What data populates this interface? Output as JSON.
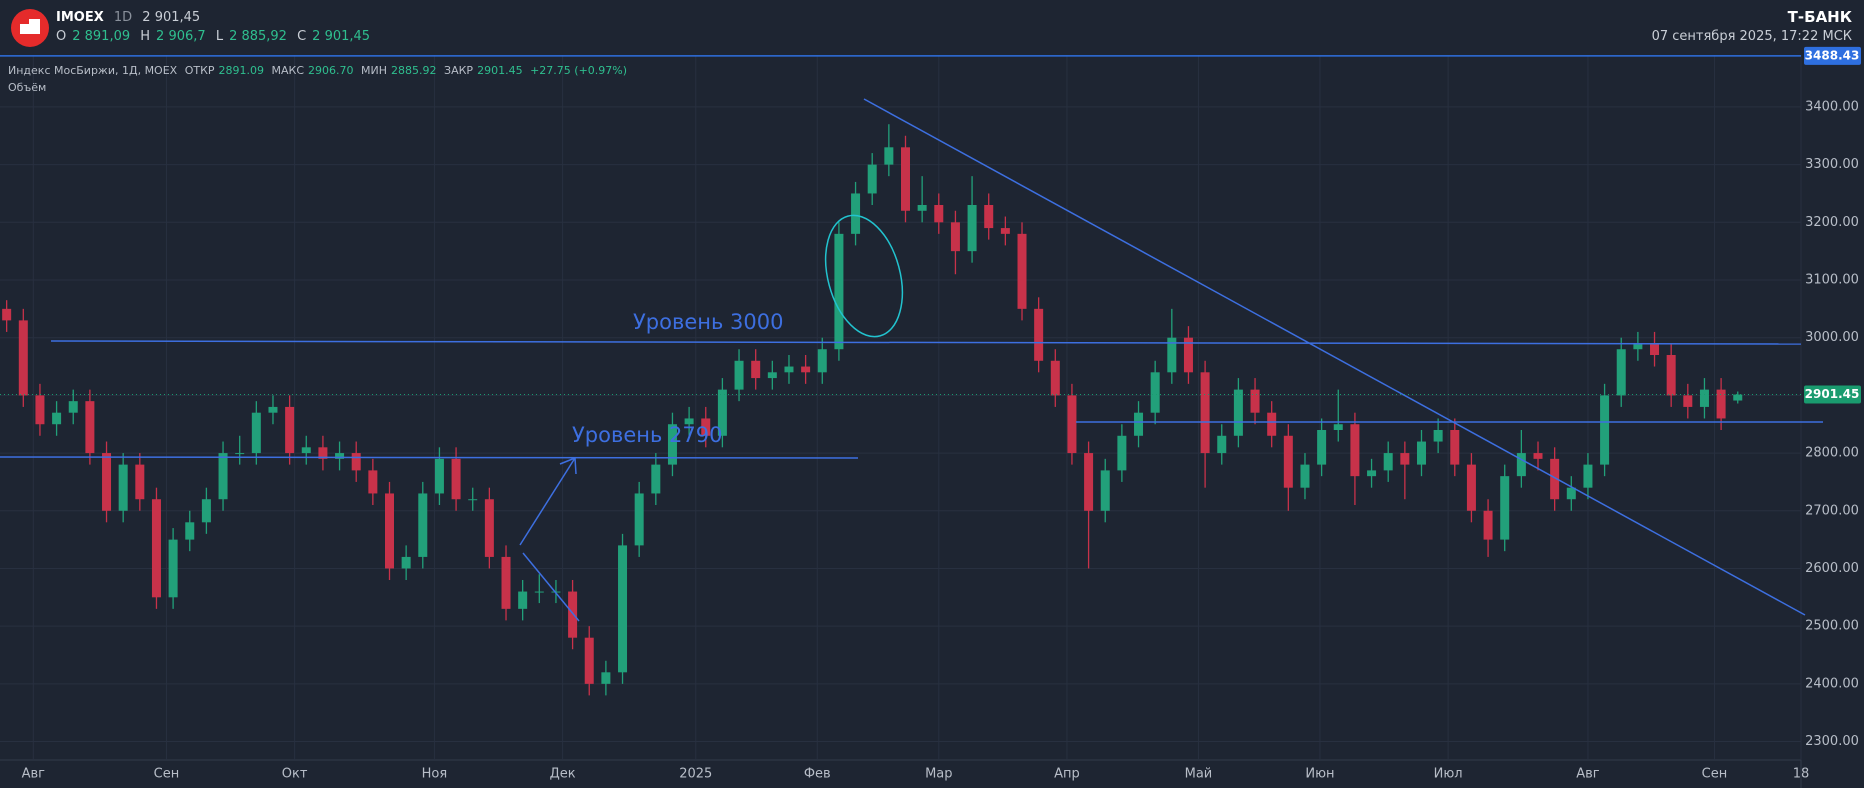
{
  "header": {
    "symbol": "IMOEX",
    "interval": "1D",
    "price": "2 901,45",
    "o_label": "O",
    "o": "2 891,09",
    "h_label": "H",
    "h": "2 906,7",
    "l_label": "L",
    "l": "2 885,92",
    "c_label": "C",
    "c": "2 901,45",
    "brand": "Т-БАНК",
    "datetime": "07 сентября 2025, 17:22 МСК"
  },
  "legend": {
    "name": "Индекс МосБиржи, 1Д, MOEX",
    "open_label": "ОТКР",
    "open": "2891.09",
    "high_label": "МАКС",
    "high": "2906.70",
    "low_label": "МИН",
    "low": "2885.92",
    "close_label": "ЗАКР",
    "close": "2901.45",
    "change": "+27.75 (+0.97%)",
    "volume": "Объём"
  },
  "chart_data": {
    "type": "candlestick",
    "ohlc": [
      [
        3050,
        3065,
        3010,
        3030
      ],
      [
        3030,
        3050,
        2880,
        2900
      ],
      [
        2900,
        2920,
        2830,
        2850
      ],
      [
        2850,
        2890,
        2830,
        2870
      ],
      [
        2870,
        2910,
        2850,
        2890
      ],
      [
        2890,
        2910,
        2780,
        2800
      ],
      [
        2800,
        2820,
        2680,
        2700
      ],
      [
        2700,
        2800,
        2680,
        2780
      ],
      [
        2780,
        2800,
        2700,
        2720
      ],
      [
        2720,
        2740,
        2530,
        2550
      ],
      [
        2550,
        2670,
        2530,
        2650
      ],
      [
        2650,
        2700,
        2630,
        2680
      ],
      [
        2680,
        2740,
        2660,
        2720
      ],
      [
        2720,
        2820,
        2700,
        2800
      ],
      [
        2800,
        2830,
        2780,
        2800
      ],
      [
        2800,
        2890,
        2780,
        2870
      ],
      [
        2870,
        2900,
        2850,
        2880
      ],
      [
        2880,
        2900,
        2780,
        2800
      ],
      [
        2800,
        2830,
        2780,
        2810
      ],
      [
        2810,
        2830,
        2770,
        2790
      ],
      [
        2790,
        2820,
        2770,
        2800
      ],
      [
        2800,
        2820,
        2750,
        2770
      ],
      [
        2770,
        2790,
        2710,
        2730
      ],
      [
        2730,
        2750,
        2580,
        2600
      ],
      [
        2600,
        2640,
        2580,
        2620
      ],
      [
        2620,
        2750,
        2600,
        2730
      ],
      [
        2730,
        2810,
        2710,
        2790
      ],
      [
        2790,
        2810,
        2700,
        2720
      ],
      [
        2720,
        2740,
        2700,
        2720
      ],
      [
        2720,
        2740,
        2600,
        2620
      ],
      [
        2620,
        2640,
        2510,
        2530
      ],
      [
        2530,
        2580,
        2510,
        2560
      ],
      [
        2560,
        2590,
        2540,
        2560
      ],
      [
        2560,
        2580,
        2540,
        2560
      ],
      [
        2560,
        2580,
        2460,
        2480
      ],
      [
        2480,
        2500,
        2380,
        2400
      ],
      [
        2400,
        2440,
        2380,
        2420
      ],
      [
        2420,
        2660,
        2400,
        2640
      ],
      [
        2640,
        2750,
        2620,
        2730
      ],
      [
        2730,
        2800,
        2710,
        2780
      ],
      [
        2780,
        2870,
        2760,
        2850
      ],
      [
        2850,
        2880,
        2830,
        2860
      ],
      [
        2860,
        2880,
        2810,
        2830
      ],
      [
        2830,
        2930,
        2810,
        2910
      ],
      [
        2910,
        2980,
        2890,
        2960
      ],
      [
        2960,
        2980,
        2910,
        2930
      ],
      [
        2930,
        2960,
        2910,
        2940
      ],
      [
        2940,
        2970,
        2920,
        2950
      ],
      [
        2950,
        2970,
        2920,
        2940
      ],
      [
        2940,
        3000,
        2920,
        2980
      ],
      [
        2980,
        3200,
        2960,
        3180
      ],
      [
        3180,
        3270,
        3160,
        3250
      ],
      [
        3250,
        3320,
        3230,
        3300
      ],
      [
        3300,
        3370,
        3280,
        3330
      ],
      [
        3330,
        3350,
        3200,
        3220
      ],
      [
        3220,
        3280,
        3200,
        3230
      ],
      [
        3230,
        3250,
        3180,
        3200
      ],
      [
        3200,
        3220,
        3110,
        3150
      ],
      [
        3150,
        3280,
        3130,
        3230
      ],
      [
        3230,
        3250,
        3170,
        3190
      ],
      [
        3190,
        3210,
        3160,
        3180
      ],
      [
        3180,
        3200,
        3030,
        3050
      ],
      [
        3050,
        3070,
        2940,
        2960
      ],
      [
        2960,
        2980,
        2880,
        2900
      ],
      [
        2900,
        2920,
        2780,
        2800
      ],
      [
        2800,
        2820,
        2600,
        2700
      ],
      [
        2700,
        2790,
        2680,
        2770
      ],
      [
        2770,
        2850,
        2750,
        2830
      ],
      [
        2830,
        2890,
        2810,
        2870
      ],
      [
        2870,
        2960,
        2850,
        2940
      ],
      [
        2940,
        3050,
        2920,
        3000
      ],
      [
        3000,
        3020,
        2920,
        2940
      ],
      [
        2940,
        2960,
        2740,
        2800
      ],
      [
        2800,
        2850,
        2780,
        2830
      ],
      [
        2830,
        2930,
        2810,
        2910
      ],
      [
        2910,
        2930,
        2850,
        2870
      ],
      [
        2870,
        2890,
        2810,
        2830
      ],
      [
        2830,
        2850,
        2700,
        2740
      ],
      [
        2740,
        2800,
        2720,
        2780
      ],
      [
        2780,
        2860,
        2760,
        2840
      ],
      [
        2840,
        2910,
        2820,
        2850
      ],
      [
        2850,
        2870,
        2710,
        2760
      ],
      [
        2760,
        2790,
        2740,
        2770
      ],
      [
        2770,
        2820,
        2750,
        2800
      ],
      [
        2800,
        2820,
        2720,
        2780
      ],
      [
        2780,
        2840,
        2760,
        2820
      ],
      [
        2820,
        2860,
        2800,
        2840
      ],
      [
        2840,
        2860,
        2760,
        2780
      ],
      [
        2780,
        2800,
        2680,
        2700
      ],
      [
        2700,
        2720,
        2620,
        2650
      ],
      [
        2650,
        2780,
        2630,
        2760
      ],
      [
        2760,
        2840,
        2740,
        2800
      ],
      [
        2800,
        2820,
        2770,
        2790
      ],
      [
        2790,
        2810,
        2700,
        2720
      ],
      [
        2720,
        2760,
        2700,
        2740
      ],
      [
        2740,
        2800,
        2720,
        2780
      ],
      [
        2780,
        2920,
        2760,
        2900
      ],
      [
        2900,
        3000,
        2880,
        2980
      ],
      [
        2980,
        3010,
        2960,
        2990
      ],
      [
        2990,
        3010,
        2950,
        2970
      ],
      [
        2970,
        2990,
        2880,
        2900
      ],
      [
        2900,
        2920,
        2860,
        2880
      ],
      [
        2880,
        2930,
        2860,
        2910
      ],
      [
        2910,
        2930,
        2840,
        2860
      ],
      [
        2891.09,
        2906.7,
        2885.92,
        2901.45
      ]
    ],
    "up_color": "#22a07a",
    "down_color": "#c8324a",
    "grid": true,
    "xlim": [
      -0.4,
      107.8
    ],
    "xticks": [
      {
        "value": 1.6,
        "label": "Авг"
      },
      {
        "value": 9.6,
        "label": "Сен"
      },
      {
        "value": 17.3,
        "label": "Окт"
      },
      {
        "value": 25.7,
        "label": "Ноя"
      },
      {
        "value": 33.4,
        "label": "Дек"
      },
      {
        "value": 41.4,
        "label": "2025"
      },
      {
        "value": 48.7,
        "label": "Фев"
      },
      {
        "value": 56,
        "label": "Мар"
      },
      {
        "value": 63.7,
        "label": "Апр"
      },
      {
        "value": 71.6,
        "label": "Май"
      },
      {
        "value": 78.9,
        "label": "Июн"
      },
      {
        "value": 86.6,
        "label": "Июл"
      },
      {
        "value": 95,
        "label": "Авг"
      },
      {
        "value": 102.6,
        "label": "Сен"
      },
      {
        "value": 107.8,
        "label": "18"
      }
    ],
    "ylim": [
      2268,
      3490
    ],
    "yticks": [
      {
        "value": 2300,
        "label": "2300.00"
      },
      {
        "value": 2400,
        "label": "2400.00"
      },
      {
        "value": 2500,
        "label": "2500.00"
      },
      {
        "value": 2600,
        "label": "2600.00"
      },
      {
        "value": 2700,
        "label": "2700.00"
      },
      {
        "value": 2800,
        "label": "2800.00"
      },
      {
        "value": 2900,
        "label": "2900.00"
      },
      {
        "value": 3000,
        "label": "3000.00"
      },
      {
        "value": 3100,
        "label": "3100.00"
      },
      {
        "value": 3200,
        "label": "3200.00"
      },
      {
        "value": 3300,
        "label": "3300.00"
      },
      {
        "value": 3400,
        "label": "3400.00"
      }
    ],
    "price_lines": [
      {
        "value": 3488.43,
        "label": "3488.43",
        "color": "#2e6fe0"
      },
      {
        "value": 2901.45,
        "label": "2901.45",
        "color": "#1a9b6f"
      }
    ],
    "annotations": [
      "Уровень 3000",
      "Уровень 2790"
    ]
  }
}
